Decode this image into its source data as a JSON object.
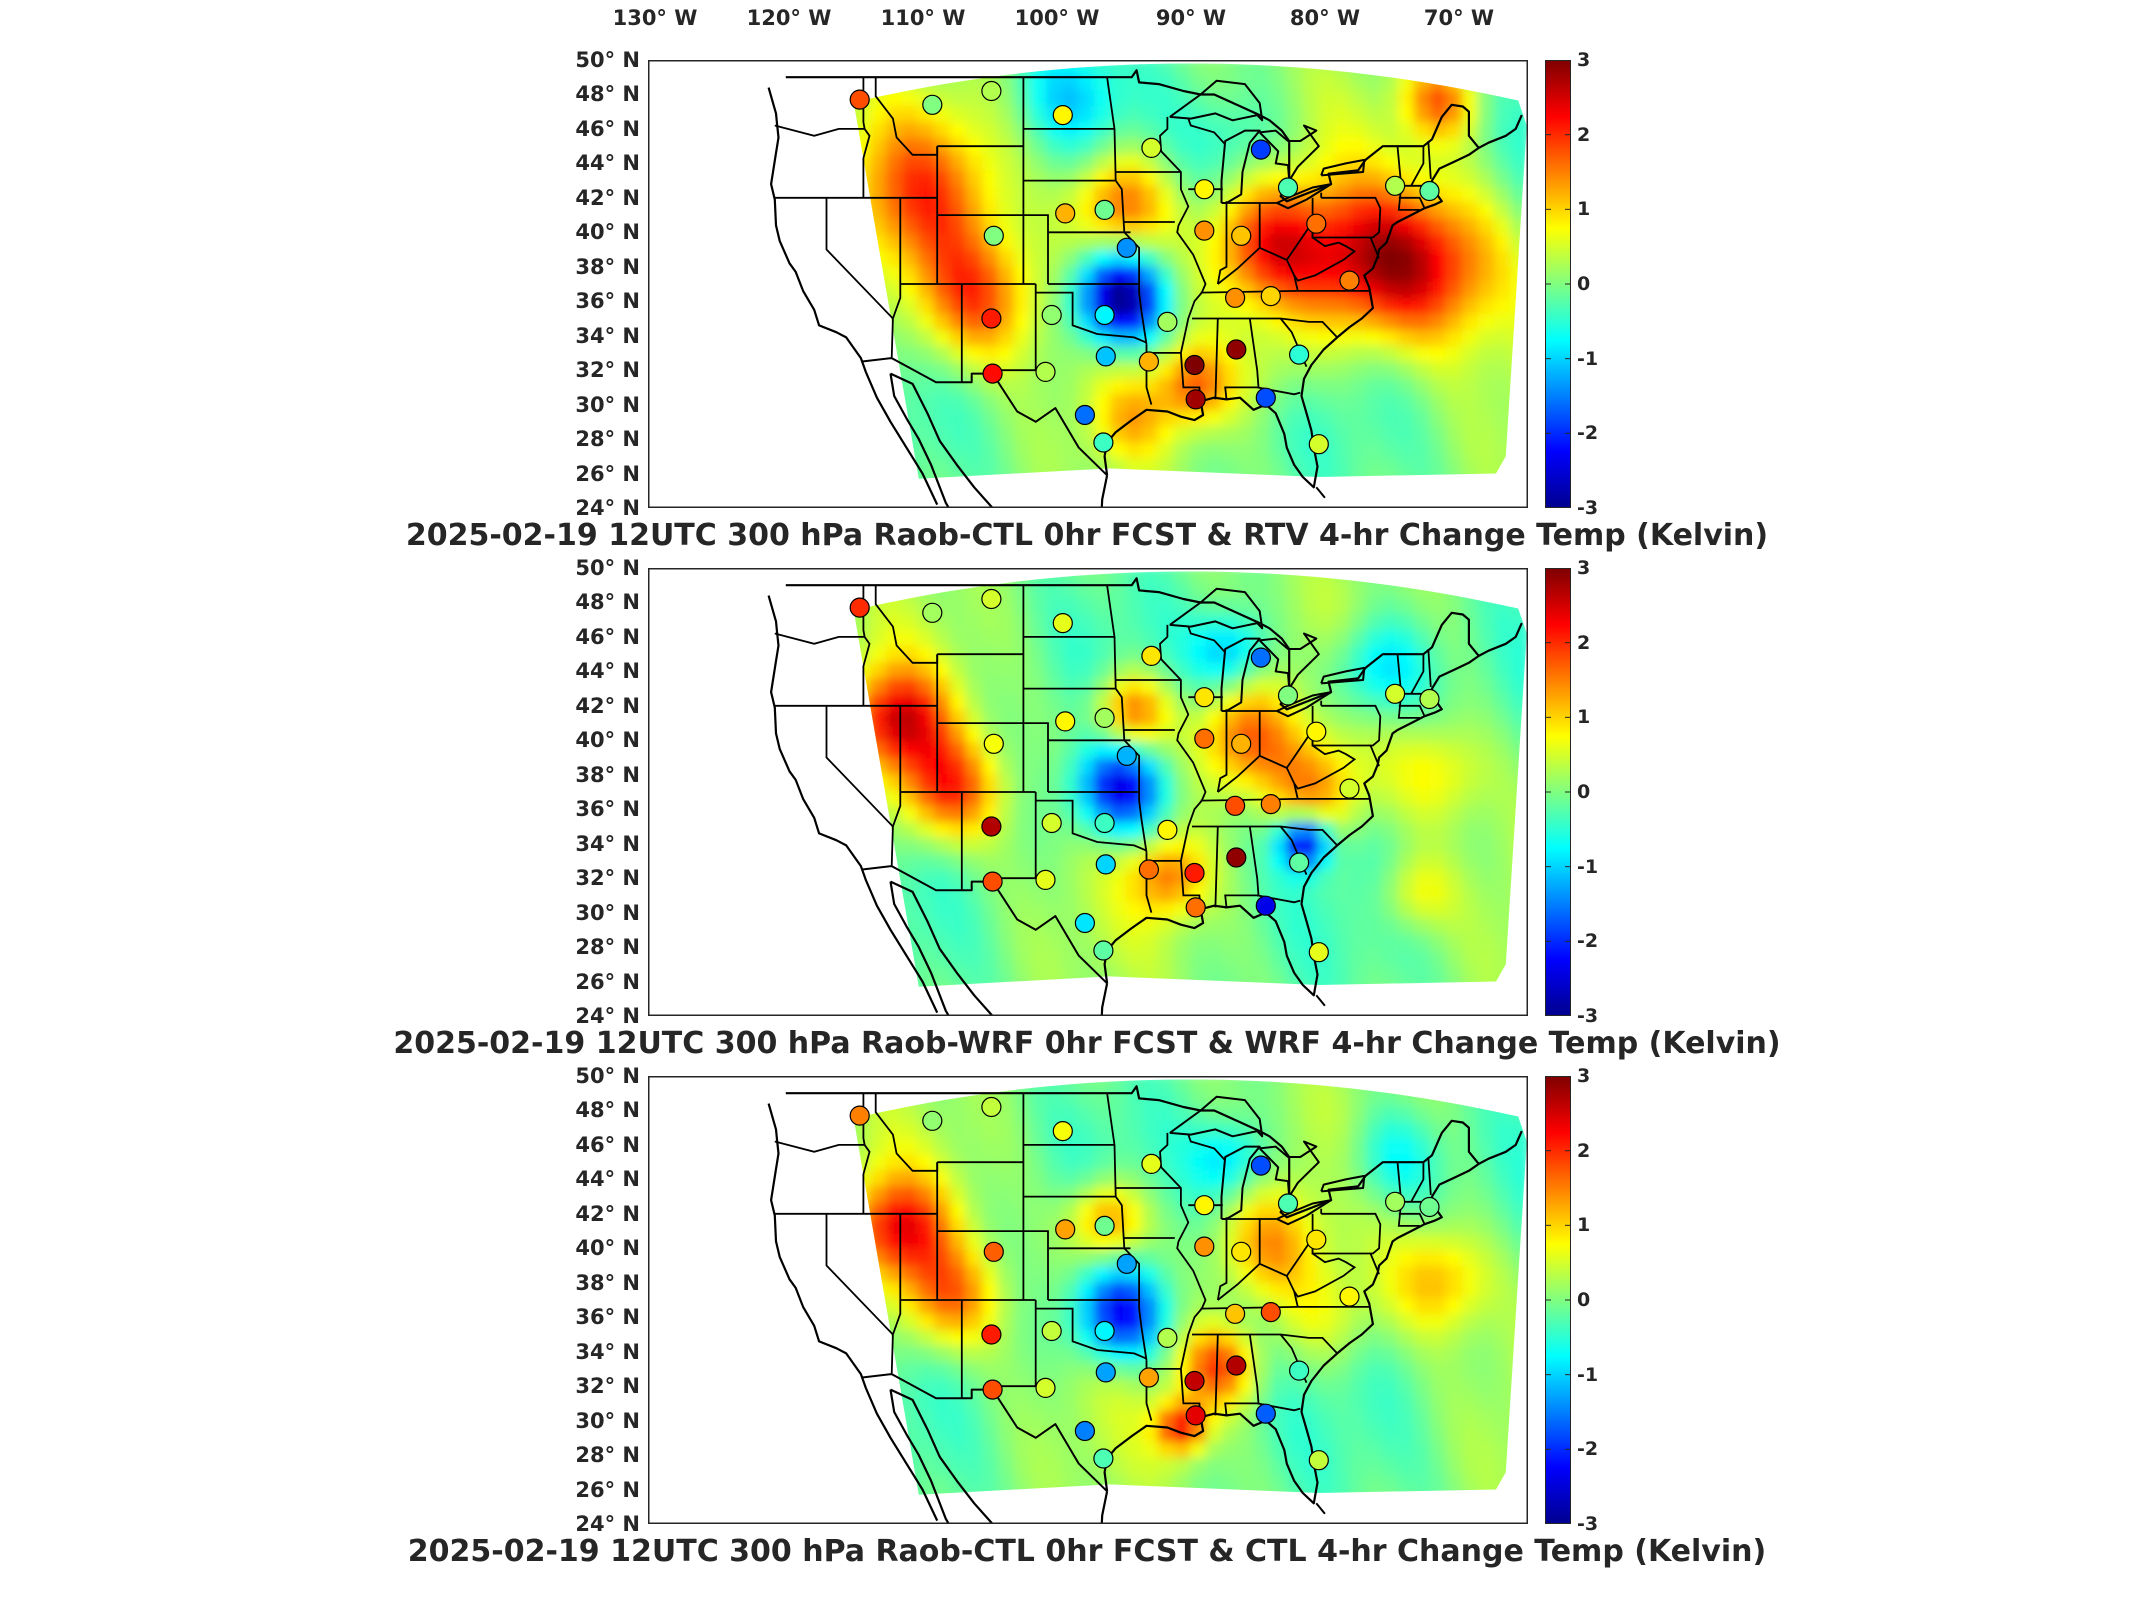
{
  "lon_labels": [
    "130° W",
    "120° W",
    "110° W",
    "100° W",
    "90° W",
    "80° W",
    "70° W"
  ],
  "lat_labels": [
    "50° N",
    "48° N",
    "46° N",
    "44° N",
    "42° N",
    "40° N",
    "38° N",
    "36° N",
    "34° N",
    "32° N",
    "30° N",
    "28° N",
    "26° N",
    "24° N"
  ],
  "colorbar_ticks": [
    "3",
    "2",
    "1",
    "0",
    "-1",
    "-2",
    "-3"
  ],
  "colorbar_colors": [
    "#7f0000",
    "#ff0000",
    "#ff8000",
    "#ffff00",
    "#80ff80",
    "#00ffff",
    "#0080ff",
    "#0000ff",
    "#00008f"
  ],
  "panels": [
    {
      "title": "2025-02-19 12UTC 300 hPa Raob-CTL 0hr FCST & RTV 4-hr Change Temp (Kelvin)",
      "stations": [
        {
          "lon": -117.3,
          "lat": 47.7,
          "value": 1.8
        },
        {
          "lon": -111.4,
          "lat": 47.4,
          "value": 0.0
        },
        {
          "lon": -106.6,
          "lat": 48.2,
          "value": 0.3
        },
        {
          "lon": -100.8,
          "lat": 46.8,
          "value": 0.8
        },
        {
          "lon": -93.6,
          "lat": 44.9,
          "value": 0.5
        },
        {
          "lon": -89.3,
          "lat": 42.5,
          "value": 0.8
        },
        {
          "lon": -84.7,
          "lat": 44.8,
          "value": -1.9
        },
        {
          "lon": -82.5,
          "lat": 42.6,
          "value": -0.3
        },
        {
          "lon": -106.4,
          "lat": 39.8,
          "value": 0.0
        },
        {
          "lon": -100.6,
          "lat": 41.1,
          "value": 1.2
        },
        {
          "lon": -97.4,
          "lat": 41.3,
          "value": -0.1
        },
        {
          "lon": -95.6,
          "lat": 39.1,
          "value": -1.4
        },
        {
          "lon": -89.3,
          "lat": 40.1,
          "value": 1.4
        },
        {
          "lon": -86.3,
          "lat": 39.8,
          "value": 1.1
        },
        {
          "lon": -80.2,
          "lat": 40.5,
          "value": 1.6
        },
        {
          "lon": -77.5,
          "lat": 37.2,
          "value": 1.5
        },
        {
          "lon": -86.8,
          "lat": 36.2,
          "value": 1.4
        },
        {
          "lon": -83.9,
          "lat": 36.3,
          "value": 1.0
        },
        {
          "lon": -92.3,
          "lat": 34.8,
          "value": 0.2
        },
        {
          "lon": -97.4,
          "lat": 35.2,
          "value": -0.8
        },
        {
          "lon": -101.7,
          "lat": 35.2,
          "value": 0.1
        },
        {
          "lon": -106.6,
          "lat": 35.0,
          "value": 2.1
        },
        {
          "lon": -106.5,
          "lat": 31.8,
          "value": 2.2
        },
        {
          "lon": -102.2,
          "lat": 31.9,
          "value": 0.3
        },
        {
          "lon": -97.3,
          "lat": 32.8,
          "value": -1.1
        },
        {
          "lon": -93.8,
          "lat": 32.5,
          "value": 1.2
        },
        {
          "lon": -90.1,
          "lat": 32.3,
          "value": 3.0
        },
        {
          "lon": -86.7,
          "lat": 33.2,
          "value": 2.9
        },
        {
          "lon": -90.0,
          "lat": 30.3,
          "value": 2.8
        },
        {
          "lon": -84.3,
          "lat": 30.4,
          "value": -1.8
        },
        {
          "lon": -81.6,
          "lat": 32.9,
          "value": -0.5
        },
        {
          "lon": -80.0,
          "lat": 27.7,
          "value": 0.5
        },
        {
          "lon": -97.5,
          "lat": 27.8,
          "value": -0.4
        },
        {
          "lon": -99.0,
          "lat": 29.4,
          "value": -1.6
        },
        {
          "lon": -71.0,
          "lat": 42.4,
          "value": -0.2
        },
        {
          "lon": -73.8,
          "lat": 42.7,
          "value": 0.3
        }
      ]
    },
    {
      "title": "2025-02-19 12UTC 300 hPa Raob-WRF 0hr FCST & WRF 4-hr Change Temp (Kelvin)",
      "stations": [
        {
          "lon": -117.3,
          "lat": 47.7,
          "value": 2.0
        },
        {
          "lon": -111.4,
          "lat": 47.4,
          "value": 0.2
        },
        {
          "lon": -106.6,
          "lat": 48.2,
          "value": 0.5
        },
        {
          "lon": -100.8,
          "lat": 46.8,
          "value": 0.6
        },
        {
          "lon": -93.6,
          "lat": 44.9,
          "value": 0.9
        },
        {
          "lon": -89.3,
          "lat": 42.5,
          "value": 0.9
        },
        {
          "lon": -84.7,
          "lat": 44.8,
          "value": -1.6
        },
        {
          "lon": -82.5,
          "lat": 42.6,
          "value": 0.0
        },
        {
          "lon": -106.4,
          "lat": 39.8,
          "value": 0.7
        },
        {
          "lon": -100.6,
          "lat": 41.1,
          "value": 0.8
        },
        {
          "lon": -97.4,
          "lat": 41.3,
          "value": 0.2
        },
        {
          "lon": -95.6,
          "lat": 39.1,
          "value": -1.2
        },
        {
          "lon": -89.3,
          "lat": 40.1,
          "value": 1.6
        },
        {
          "lon": -86.3,
          "lat": 39.8,
          "value": 1.2
        },
        {
          "lon": -80.2,
          "lat": 40.5,
          "value": 0.8
        },
        {
          "lon": -77.5,
          "lat": 37.2,
          "value": 0.5
        },
        {
          "lon": -86.8,
          "lat": 36.2,
          "value": 1.8
        },
        {
          "lon": -83.9,
          "lat": 36.3,
          "value": 1.5
        },
        {
          "lon": -92.3,
          "lat": 34.8,
          "value": 0.8
        },
        {
          "lon": -97.4,
          "lat": 35.2,
          "value": -0.4
        },
        {
          "lon": -101.7,
          "lat": 35.2,
          "value": 0.5
        },
        {
          "lon": -106.6,
          "lat": 35.0,
          "value": 2.7
        },
        {
          "lon": -106.5,
          "lat": 31.8,
          "value": 1.8
        },
        {
          "lon": -102.2,
          "lat": 31.9,
          "value": 0.6
        },
        {
          "lon": -97.3,
          "lat": 32.8,
          "value": -1.0
        },
        {
          "lon": -93.8,
          "lat": 32.5,
          "value": 1.6
        },
        {
          "lon": -90.1,
          "lat": 32.3,
          "value": 2.1
        },
        {
          "lon": -86.7,
          "lat": 33.2,
          "value": 2.9
        },
        {
          "lon": -90.0,
          "lat": 30.3,
          "value": 1.6
        },
        {
          "lon": -84.3,
          "lat": 30.4,
          "value": -2.4
        },
        {
          "lon": -81.6,
          "lat": 32.9,
          "value": -0.2
        },
        {
          "lon": -80.0,
          "lat": 27.7,
          "value": 0.6
        },
        {
          "lon": -97.5,
          "lat": 27.8,
          "value": -0.2
        },
        {
          "lon": -99.0,
          "lat": 29.4,
          "value": -0.9
        },
        {
          "lon": -71.0,
          "lat": 42.4,
          "value": 0.3
        },
        {
          "lon": -73.8,
          "lat": 42.7,
          "value": 0.5
        }
      ]
    },
    {
      "title": "2025-02-19 12UTC 300 hPa Raob-CTL 0hr FCST & CTL 4-hr Change Temp (Kelvin)",
      "stations": [
        {
          "lon": -117.3,
          "lat": 47.7,
          "value": 1.5
        },
        {
          "lon": -111.4,
          "lat": 47.4,
          "value": 0.1
        },
        {
          "lon": -106.6,
          "lat": 48.2,
          "value": 0.4
        },
        {
          "lon": -100.8,
          "lat": 46.8,
          "value": 0.7
        },
        {
          "lon": -93.6,
          "lat": 44.9,
          "value": 0.6
        },
        {
          "lon": -89.3,
          "lat": 42.5,
          "value": 0.8
        },
        {
          "lon": -84.7,
          "lat": 44.8,
          "value": -1.8
        },
        {
          "lon": -82.5,
          "lat": 42.6,
          "value": -0.3
        },
        {
          "lon": -106.4,
          "lat": 39.8,
          "value": 1.7
        },
        {
          "lon": -100.6,
          "lat": 41.1,
          "value": 1.3
        },
        {
          "lon": -97.4,
          "lat": 41.3,
          "value": -0.1
        },
        {
          "lon": -95.6,
          "lat": 39.1,
          "value": -1.3
        },
        {
          "lon": -89.3,
          "lat": 40.1,
          "value": 1.4
        },
        {
          "lon": -86.3,
          "lat": 39.8,
          "value": 0.9
        },
        {
          "lon": -80.2,
          "lat": 40.5,
          "value": 0.9
        },
        {
          "lon": -77.5,
          "lat": 37.2,
          "value": 0.8
        },
        {
          "lon": -86.8,
          "lat": 36.2,
          "value": 1.1
        },
        {
          "lon": -83.9,
          "lat": 36.3,
          "value": 1.8
        },
        {
          "lon": -92.3,
          "lat": 34.8,
          "value": 0.3
        },
        {
          "lon": -97.4,
          "lat": 35.2,
          "value": -0.8
        },
        {
          "lon": -101.7,
          "lat": 35.2,
          "value": 0.4
        },
        {
          "lon": -106.6,
          "lat": 35.0,
          "value": 2.1
        },
        {
          "lon": -106.5,
          "lat": 31.8,
          "value": 1.8
        },
        {
          "lon": -102.2,
          "lat": 31.9,
          "value": 0.5
        },
        {
          "lon": -97.3,
          "lat": 32.8,
          "value": -1.3
        },
        {
          "lon": -93.8,
          "lat": 32.5,
          "value": 1.3
        },
        {
          "lon": -90.1,
          "lat": 32.3,
          "value": 2.6
        },
        {
          "lon": -86.7,
          "lat": 33.2,
          "value": 2.7
        },
        {
          "lon": -90.0,
          "lat": 30.3,
          "value": 2.4
        },
        {
          "lon": -84.3,
          "lat": 30.4,
          "value": -1.7
        },
        {
          "lon": -81.6,
          "lat": 32.9,
          "value": -0.4
        },
        {
          "lon": -80.0,
          "lat": 27.7,
          "value": 0.4
        },
        {
          "lon": -97.5,
          "lat": 27.8,
          "value": -0.3
        },
        {
          "lon": -99.0,
          "lat": 29.4,
          "value": -1.5
        },
        {
          "lon": -71.0,
          "lat": 42.4,
          "value": -0.1
        },
        {
          "lon": -73.8,
          "lat": 42.7,
          "value": 0.2
        }
      ]
    }
  ]
}
